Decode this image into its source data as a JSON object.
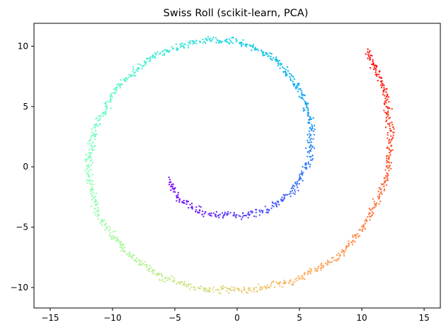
{
  "chart_data": {
    "type": "scatter",
    "title": "Swiss Roll (scikit-learn, PCA)",
    "xlabel": "",
    "ylabel": "",
    "xlim": [
      -16.3,
      16.3
    ],
    "ylim": [
      -11.7,
      11.9
    ],
    "x_ticks": [
      -15,
      -10,
      -5,
      0,
      5,
      10,
      15
    ],
    "y_ticks": [
      -10,
      -5,
      0,
      5,
      10
    ],
    "grid": false,
    "legend": "none",
    "colormap": "rainbow",
    "marker_size": 2,
    "series": [
      {
        "spiral_t_range": [
          4.71,
          14.14
        ],
        "points": [
          {
            "x": -5.5,
            "y": -1.1
          },
          {
            "x": -4.6,
            "y": -2.8
          },
          {
            "x": -2.5,
            "y": -3.9
          },
          {
            "x": 0.0,
            "y": -4.1
          },
          {
            "x": 2.5,
            "y": -3.5
          },
          {
            "x": 4.5,
            "y": -2.0
          },
          {
            "x": 5.8,
            "y": 0.5
          },
          {
            "x": 6.0,
            "y": 3.5
          },
          {
            "x": 5.0,
            "y": 6.5
          },
          {
            "x": 3.0,
            "y": 9.0
          },
          {
            "x": 0.0,
            "y": 10.4
          },
          {
            "x": -3.0,
            "y": 10.5
          },
          {
            "x": -6.5,
            "y": 9.3
          },
          {
            "x": -9.5,
            "y": 6.8
          },
          {
            "x": -11.5,
            "y": 3.0
          },
          {
            "x": -12.0,
            "y": 0.0
          },
          {
            "x": -11.2,
            "y": -4.0
          },
          {
            "x": -9.0,
            "y": -7.0
          },
          {
            "x": -6.0,
            "y": -9.2
          },
          {
            "x": -2.5,
            "y": -10.2
          },
          {
            "x": 1.0,
            "y": -10.2
          },
          {
            "x": 4.5,
            "y": -9.5
          },
          {
            "x": 8.0,
            "y": -7.5
          },
          {
            "x": 10.5,
            "y": -4.5
          },
          {
            "x": 12.0,
            "y": -1.0
          },
          {
            "x": 12.3,
            "y": 3.0
          },
          {
            "x": 11.8,
            "y": 6.5
          },
          {
            "x": 10.5,
            "y": 9.6
          }
        ]
      }
    ]
  }
}
